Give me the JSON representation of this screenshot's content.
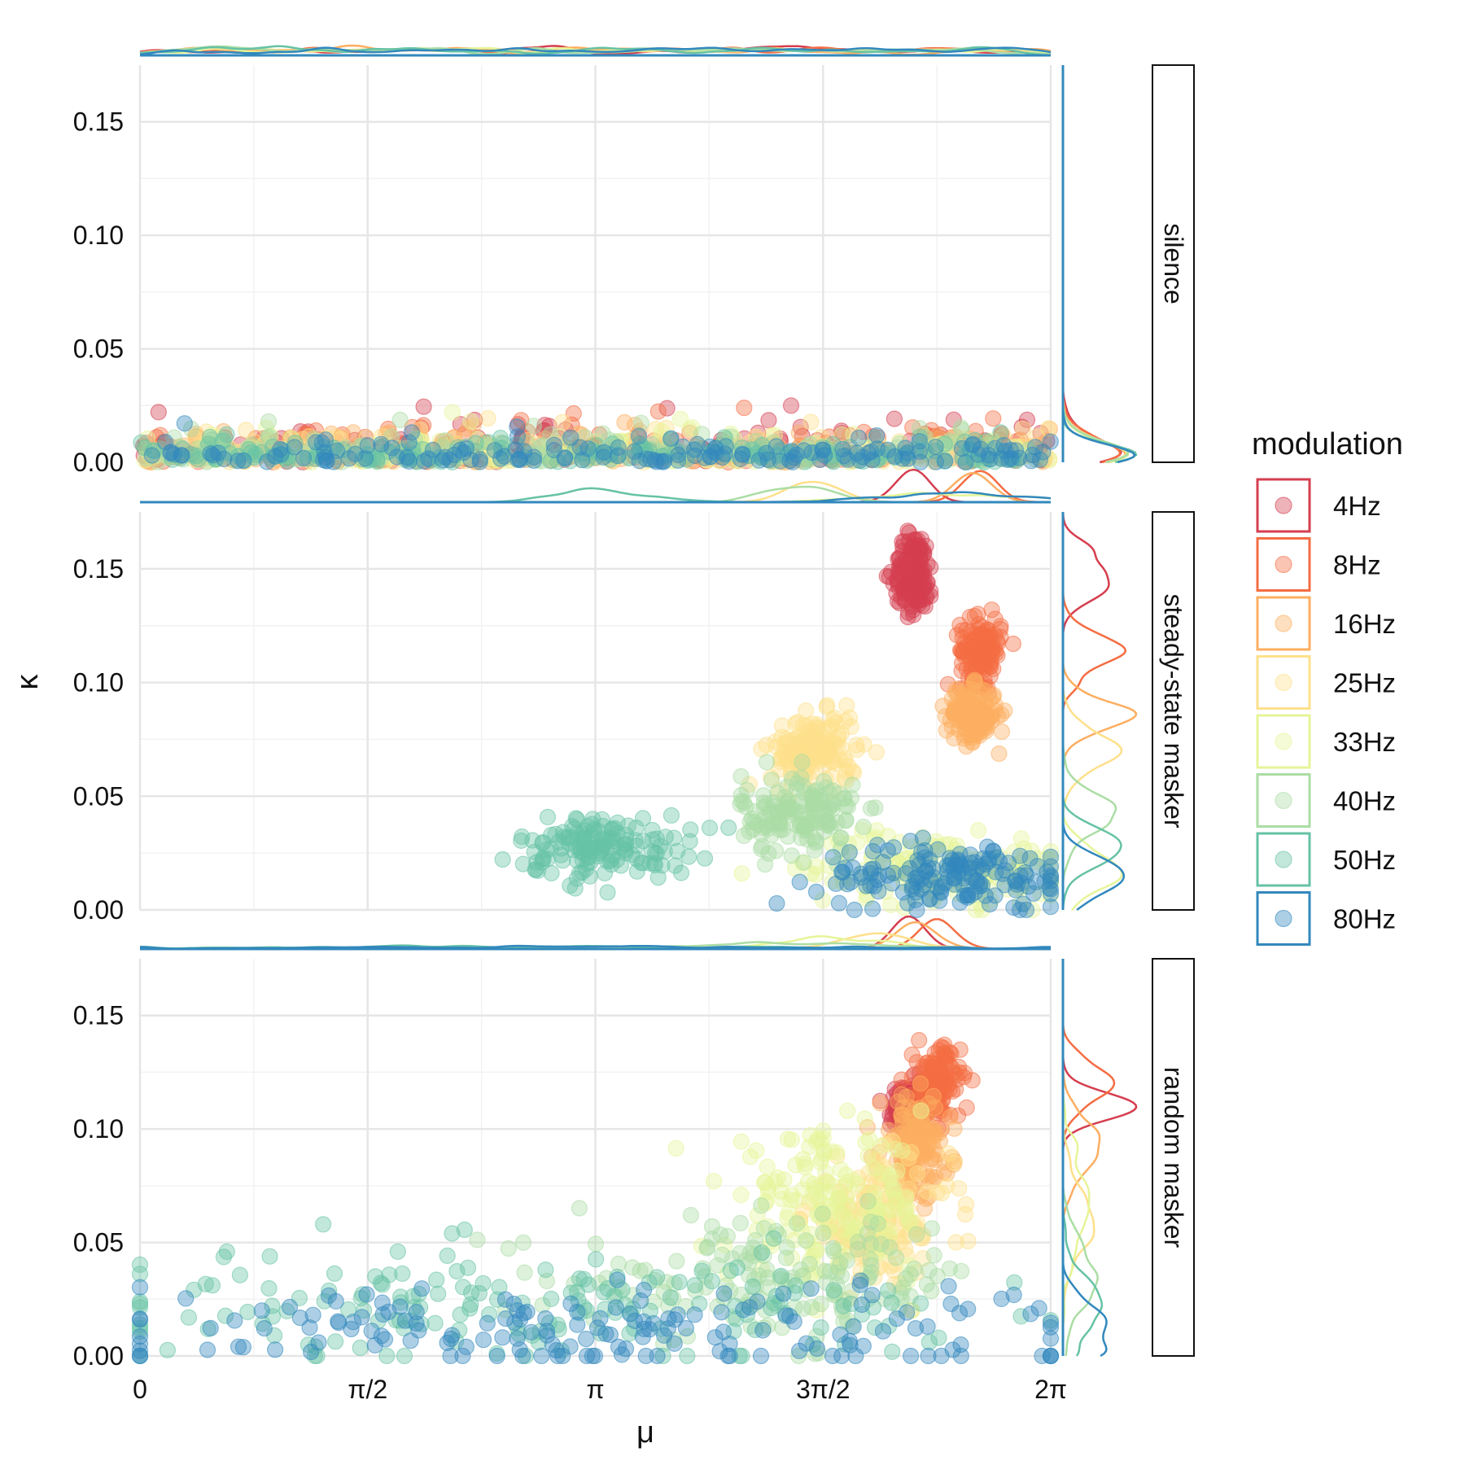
{
  "chart_data": {
    "type": "scatter",
    "xlabel": "μ",
    "ylabel": "κ",
    "xlim": [
      0,
      6.2832
    ],
    "ylim": [
      0,
      0.175
    ],
    "x_ticks": [
      {
        "value": 0,
        "label": "0"
      },
      {
        "value": 1.5708,
        "label": "π/2"
      },
      {
        "value": 3.1416,
        "label": "π"
      },
      {
        "value": 4.7124,
        "label": "3π/2"
      },
      {
        "value": 6.2832,
        "label": "2π"
      }
    ],
    "y_ticks": [
      {
        "value": 0.0,
        "label": "0.00"
      },
      {
        "value": 0.05,
        "label": "0.05"
      },
      {
        "value": 0.1,
        "label": "0.10"
      },
      {
        "value": 0.15,
        "label": "0.15"
      }
    ],
    "grid": true,
    "marginal_densities": true,
    "legend": {
      "title": "modulation",
      "position": "right",
      "entries": [
        {
          "name": "4Hz",
          "color": "#d53e4f"
        },
        {
          "name": "8Hz",
          "color": "#f46d43"
        },
        {
          "name": "16Hz",
          "color": "#fdae61"
        },
        {
          "name": "25Hz",
          "color": "#fee08b"
        },
        {
          "name": "33Hz",
          "color": "#e6f598"
        },
        {
          "name": "40Hz",
          "color": "#abdda4"
        },
        {
          "name": "50Hz",
          "color": "#66c2a5"
        },
        {
          "name": "80Hz",
          "color": "#3288bd"
        }
      ]
    },
    "panels": [
      {
        "name": "silence",
        "clusters": [
          {
            "series": "4Hz",
            "mu_range": [
              0,
              6.2832
            ],
            "kappa_range": [
              0,
              0.025
            ],
            "kappa_typical": 0.008
          },
          {
            "series": "8Hz",
            "mu_range": [
              0,
              6.2832
            ],
            "kappa_range": [
              0,
              0.024
            ],
            "kappa_typical": 0.008
          },
          {
            "series": "16Hz",
            "mu_range": [
              0,
              6.2832
            ],
            "kappa_range": [
              0,
              0.024
            ],
            "kappa_typical": 0.007
          },
          {
            "series": "25Hz",
            "mu_range": [
              0,
              6.2832
            ],
            "kappa_range": [
              0,
              0.022
            ],
            "kappa_typical": 0.007
          },
          {
            "series": "33Hz",
            "mu_range": [
              0,
              6.2832
            ],
            "kappa_range": [
              0,
              0.022
            ],
            "kappa_typical": 0.006
          },
          {
            "series": "40Hz",
            "mu_range": [
              0,
              6.2832
            ],
            "kappa_range": [
              0,
              0.02
            ],
            "kappa_typical": 0.006
          },
          {
            "series": "50Hz",
            "mu_range": [
              0,
              6.2832
            ],
            "kappa_range": [
              0,
              0.02
            ],
            "kappa_typical": 0.005
          },
          {
            "series": "80Hz",
            "mu_range": [
              0,
              6.2832
            ],
            "kappa_range": [
              0,
              0.02
            ],
            "kappa_typical": 0.005
          }
        ]
      },
      {
        "name": "steady-state masker",
        "clusters": [
          {
            "series": "4Hz",
            "mu_center": 5.34,
            "mu_spread": 0.07,
            "kappa_center": 0.148,
            "kappa_spread": 0.009,
            "kappa_range": [
              0.113,
              0.172
            ]
          },
          {
            "series": "8Hz",
            "mu_center": 5.8,
            "mu_spread": 0.07,
            "kappa_center": 0.114,
            "kappa_spread": 0.007,
            "kappa_range": [
              0.095,
              0.132
            ]
          },
          {
            "series": "16Hz",
            "mu_center": 5.74,
            "mu_spread": 0.09,
            "kappa_center": 0.086,
            "kappa_spread": 0.006,
            "kappa_range": [
              0.068,
              0.102
            ]
          },
          {
            "series": "25Hz",
            "mu_center": 4.65,
            "mu_spread": 0.15,
            "kappa_center": 0.07,
            "kappa_spread": 0.008,
            "kappa_range": [
              0.045,
              0.09
            ]
          },
          {
            "series": "33Hz",
            "mu_center": 5.5,
            "mu_spread": 0.45,
            "kappa_center": 0.018,
            "kappa_spread": 0.008,
            "kappa_range": [
              0,
              0.035
            ]
          },
          {
            "series": "40Hz",
            "mu_center": 4.55,
            "mu_spread": 0.2,
            "kappa_center": 0.042,
            "kappa_spread": 0.009,
            "kappa_range": [
              0.02,
              0.065
            ]
          },
          {
            "series": "50Hz",
            "mu_center": 3.2,
            "mu_spread": 0.3,
            "kappa_center": 0.028,
            "kappa_spread": 0.007,
            "kappa_range": [
              0.005,
              0.05
            ]
          },
          {
            "series": "80Hz",
            "mu_center": 5.6,
            "mu_spread": 0.45,
            "kappa_center": 0.015,
            "kappa_spread": 0.007,
            "kappa_range": [
              0,
              0.035
            ]
          }
        ]
      },
      {
        "name": "random masker",
        "clusters": [
          {
            "series": "4Hz",
            "mu_center": 5.3,
            "mu_spread": 0.06,
            "kappa_center": 0.11,
            "kappa_spread": 0.005,
            "kappa_range": [
              0.1,
              0.125
            ]
          },
          {
            "series": "8Hz",
            "mu_center": 5.5,
            "mu_spread": 0.08,
            "kappa_center": 0.12,
            "kappa_spread": 0.008,
            "kappa_range": [
              0.1,
              0.145
            ]
          },
          {
            "series": "16Hz",
            "mu_center": 5.35,
            "mu_spread": 0.12,
            "kappa_center": 0.092,
            "kappa_spread": 0.011,
            "kappa_range": [
              0.06,
              0.12
            ]
          },
          {
            "series": "25Hz",
            "mu_center": 5.1,
            "mu_spread": 0.25,
            "kappa_center": 0.06,
            "kappa_spread": 0.013,
            "kappa_range": [
              0.02,
              0.1
            ]
          },
          {
            "series": "33Hz",
            "mu_center": 4.75,
            "mu_spread": 0.35,
            "kappa_center": 0.065,
            "kappa_spread": 0.016,
            "kappa_range": [
              0.02,
              0.108
            ]
          },
          {
            "series": "40Hz",
            "mu_center": 4.4,
            "mu_spread": 0.7,
            "kappa_center": 0.035,
            "kappa_spread": 0.013,
            "kappa_range": [
              0,
              0.07
            ]
          },
          {
            "series": "50Hz",
            "mu_center": 2.6,
            "mu_spread": 1.5,
            "kappa_center": 0.022,
            "kappa_spread": 0.012,
            "kappa_range": [
              0,
              0.066
            ]
          },
          {
            "series": "80Hz",
            "mu_center": 3.1,
            "mu_spread": 1.75,
            "kappa_center": 0.012,
            "kappa_spread": 0.011,
            "kappa_range": [
              0,
              0.066
            ]
          }
        ]
      }
    ]
  }
}
